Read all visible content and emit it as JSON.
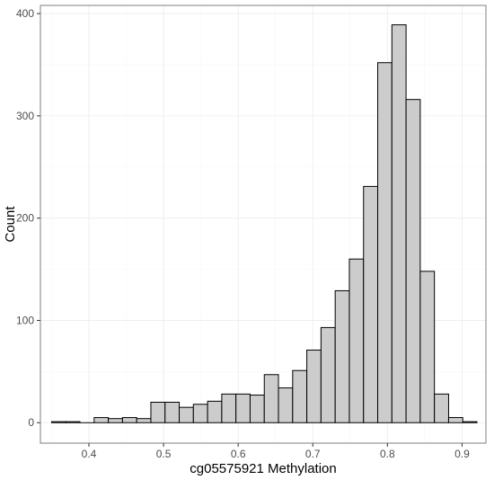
{
  "chart_data": {
    "type": "bar",
    "subtype": "histogram",
    "xlabel": "cg05575921 Methylation",
    "ylabel": "Count",
    "xlim": [
      0.335,
      0.932
    ],
    "ylim": [
      -20,
      408
    ],
    "x_ticks": [
      0.4,
      0.5,
      0.6,
      0.7,
      0.8,
      0.9
    ],
    "x_tick_labels": [
      "0.4",
      "0.5",
      "0.6",
      "0.7",
      "0.8",
      "0.9"
    ],
    "y_ticks": [
      0,
      100,
      200,
      300,
      400
    ],
    "y_tick_labels": [
      "0",
      "100",
      "200",
      "300",
      "400"
    ],
    "grid": true,
    "colors": {
      "bar_fill": "#cccccc",
      "bar_stroke": "#000000"
    },
    "bins": [
      {
        "x0": 0.35,
        "x1": 0.369,
        "value": 1
      },
      {
        "x0": 0.369,
        "x1": 0.388,
        "value": 1
      },
      {
        "x0": 0.388,
        "x1": 0.407,
        "value": 0
      },
      {
        "x0": 0.407,
        "x1": 0.426,
        "value": 5
      },
      {
        "x0": 0.426,
        "x1": 0.445,
        "value": 4
      },
      {
        "x0": 0.445,
        "x1": 0.464,
        "value": 5
      },
      {
        "x0": 0.464,
        "x1": 0.483,
        "value": 4
      },
      {
        "x0": 0.483,
        "x1": 0.502,
        "value": 20
      },
      {
        "x0": 0.502,
        "x1": 0.521,
        "value": 20
      },
      {
        "x0": 0.521,
        "x1": 0.54,
        "value": 15
      },
      {
        "x0": 0.54,
        "x1": 0.559,
        "value": 18
      },
      {
        "x0": 0.559,
        "x1": 0.578,
        "value": 21
      },
      {
        "x0": 0.578,
        "x1": 0.597,
        "value": 28
      },
      {
        "x0": 0.597,
        "x1": 0.616,
        "value": 28
      },
      {
        "x0": 0.616,
        "x1": 0.635,
        "value": 27
      },
      {
        "x0": 0.635,
        "x1": 0.654,
        "value": 47
      },
      {
        "x0": 0.654,
        "x1": 0.673,
        "value": 34
      },
      {
        "x0": 0.673,
        "x1": 0.692,
        "value": 51
      },
      {
        "x0": 0.692,
        "x1": 0.711,
        "value": 71
      },
      {
        "x0": 0.711,
        "x1": 0.73,
        "value": 93
      },
      {
        "x0": 0.73,
        "x1": 0.749,
        "value": 129
      },
      {
        "x0": 0.749,
        "x1": 0.768,
        "value": 160
      },
      {
        "x0": 0.768,
        "x1": 0.787,
        "value": 231
      },
      {
        "x0": 0.787,
        "x1": 0.806,
        "value": 352
      },
      {
        "x0": 0.806,
        "x1": 0.825,
        "value": 389
      },
      {
        "x0": 0.825,
        "x1": 0.844,
        "value": 316
      },
      {
        "x0": 0.844,
        "x1": 0.863,
        "value": 148
      },
      {
        "x0": 0.863,
        "x1": 0.882,
        "value": 28
      },
      {
        "x0": 0.882,
        "x1": 0.901,
        "value": 5
      },
      {
        "x0": 0.901,
        "x1": 0.92,
        "value": 1
      }
    ]
  }
}
